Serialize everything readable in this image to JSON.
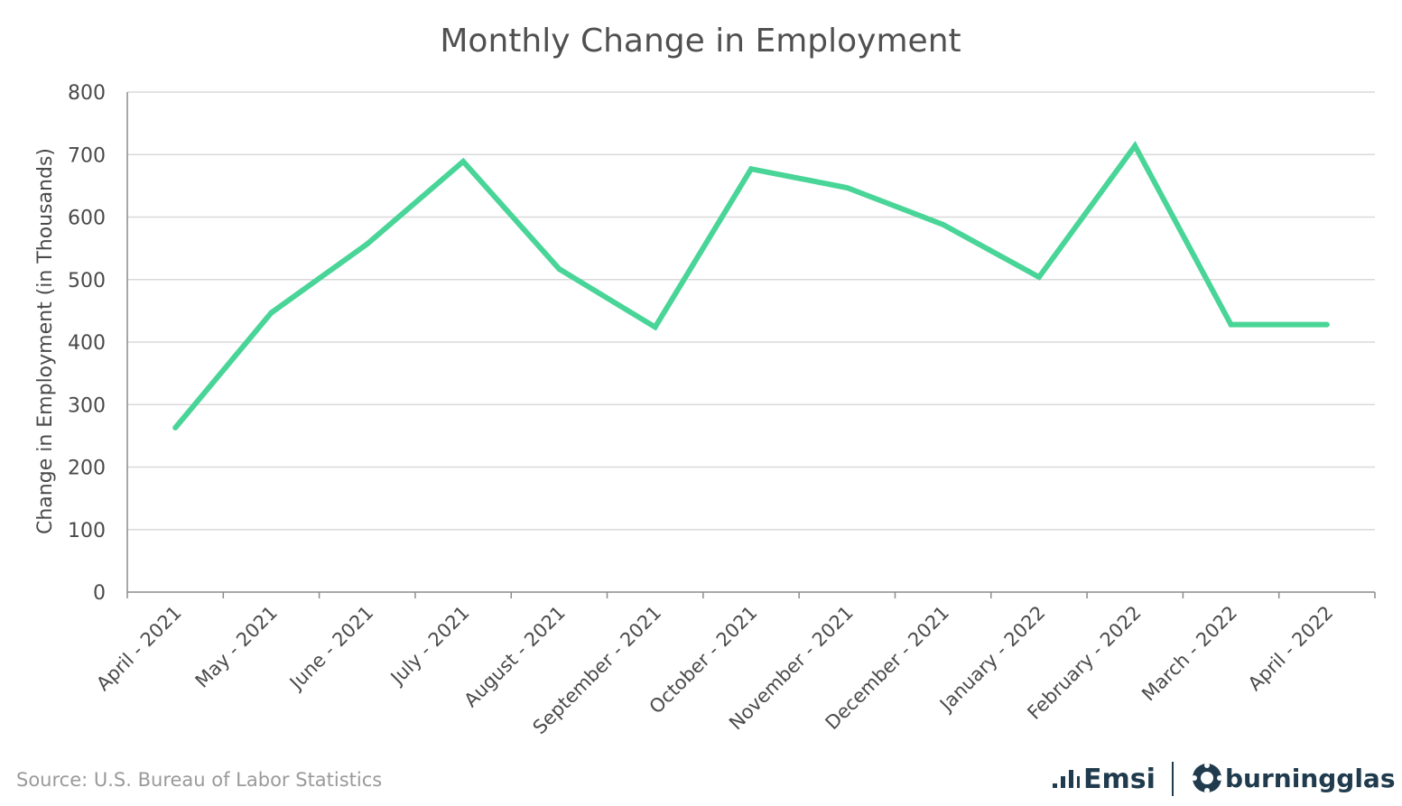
{
  "chart_data": {
    "type": "line",
    "title": "Monthly Change in Employment",
    "ylabel": "Change in Employment (in Thousands)",
    "xlabel": "",
    "ylim": [
      0,
      800
    ],
    "yticks": [
      0,
      100,
      200,
      300,
      400,
      500,
      600,
      700,
      800
    ],
    "grid": true,
    "categories": [
      "April - 2021",
      "May - 2021",
      "June - 2021",
      "July - 2021",
      "August - 2021",
      "September - 2021",
      "October - 2021",
      "November - 2021",
      "December - 2021",
      "January - 2022",
      "February - 2022",
      "March - 2022",
      "April - 2022"
    ],
    "series": [
      {
        "values": [
          263,
          447,
          557,
          689,
          517,
          424,
          677,
          647,
          588,
          504,
          714,
          428,
          428
        ],
        "color": "#48d597"
      }
    ]
  },
  "source": "Source:  U.S. Bureau of Labor Statistics",
  "logos": {
    "emsi": "Emsi",
    "burningglass": "burningglass"
  }
}
